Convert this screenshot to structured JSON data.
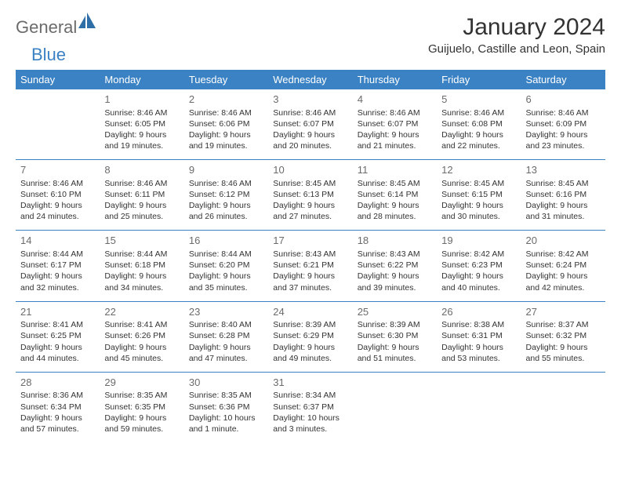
{
  "logo": {
    "general": "General",
    "blue": "Blue"
  },
  "title": "January 2024",
  "location": "Guijuelo, Castille and Leon, Spain",
  "colors": {
    "accent": "#3b82c4",
    "text": "#333333",
    "muted": "#6b6b6b",
    "bg": "#ffffff"
  },
  "days": [
    "Sunday",
    "Monday",
    "Tuesday",
    "Wednesday",
    "Thursday",
    "Friday",
    "Saturday"
  ],
  "weeks": [
    [
      null,
      {
        "n": "1",
        "sr": "Sunrise: 8:46 AM",
        "ss": "Sunset: 6:05 PM",
        "d1": "Daylight: 9 hours",
        "d2": "and 19 minutes."
      },
      {
        "n": "2",
        "sr": "Sunrise: 8:46 AM",
        "ss": "Sunset: 6:06 PM",
        "d1": "Daylight: 9 hours",
        "d2": "and 19 minutes."
      },
      {
        "n": "3",
        "sr": "Sunrise: 8:46 AM",
        "ss": "Sunset: 6:07 PM",
        "d1": "Daylight: 9 hours",
        "d2": "and 20 minutes."
      },
      {
        "n": "4",
        "sr": "Sunrise: 8:46 AM",
        "ss": "Sunset: 6:07 PM",
        "d1": "Daylight: 9 hours",
        "d2": "and 21 minutes."
      },
      {
        "n": "5",
        "sr": "Sunrise: 8:46 AM",
        "ss": "Sunset: 6:08 PM",
        "d1": "Daylight: 9 hours",
        "d2": "and 22 minutes."
      },
      {
        "n": "6",
        "sr": "Sunrise: 8:46 AM",
        "ss": "Sunset: 6:09 PM",
        "d1": "Daylight: 9 hours",
        "d2": "and 23 minutes."
      }
    ],
    [
      {
        "n": "7",
        "sr": "Sunrise: 8:46 AM",
        "ss": "Sunset: 6:10 PM",
        "d1": "Daylight: 9 hours",
        "d2": "and 24 minutes."
      },
      {
        "n": "8",
        "sr": "Sunrise: 8:46 AM",
        "ss": "Sunset: 6:11 PM",
        "d1": "Daylight: 9 hours",
        "d2": "and 25 minutes."
      },
      {
        "n": "9",
        "sr": "Sunrise: 8:46 AM",
        "ss": "Sunset: 6:12 PM",
        "d1": "Daylight: 9 hours",
        "d2": "and 26 minutes."
      },
      {
        "n": "10",
        "sr": "Sunrise: 8:45 AM",
        "ss": "Sunset: 6:13 PM",
        "d1": "Daylight: 9 hours",
        "d2": "and 27 minutes."
      },
      {
        "n": "11",
        "sr": "Sunrise: 8:45 AM",
        "ss": "Sunset: 6:14 PM",
        "d1": "Daylight: 9 hours",
        "d2": "and 28 minutes."
      },
      {
        "n": "12",
        "sr": "Sunrise: 8:45 AM",
        "ss": "Sunset: 6:15 PM",
        "d1": "Daylight: 9 hours",
        "d2": "and 30 minutes."
      },
      {
        "n": "13",
        "sr": "Sunrise: 8:45 AM",
        "ss": "Sunset: 6:16 PM",
        "d1": "Daylight: 9 hours",
        "d2": "and 31 minutes."
      }
    ],
    [
      {
        "n": "14",
        "sr": "Sunrise: 8:44 AM",
        "ss": "Sunset: 6:17 PM",
        "d1": "Daylight: 9 hours",
        "d2": "and 32 minutes."
      },
      {
        "n": "15",
        "sr": "Sunrise: 8:44 AM",
        "ss": "Sunset: 6:18 PM",
        "d1": "Daylight: 9 hours",
        "d2": "and 34 minutes."
      },
      {
        "n": "16",
        "sr": "Sunrise: 8:44 AM",
        "ss": "Sunset: 6:20 PM",
        "d1": "Daylight: 9 hours",
        "d2": "and 35 minutes."
      },
      {
        "n": "17",
        "sr": "Sunrise: 8:43 AM",
        "ss": "Sunset: 6:21 PM",
        "d1": "Daylight: 9 hours",
        "d2": "and 37 minutes."
      },
      {
        "n": "18",
        "sr": "Sunrise: 8:43 AM",
        "ss": "Sunset: 6:22 PM",
        "d1": "Daylight: 9 hours",
        "d2": "and 39 minutes."
      },
      {
        "n": "19",
        "sr": "Sunrise: 8:42 AM",
        "ss": "Sunset: 6:23 PM",
        "d1": "Daylight: 9 hours",
        "d2": "and 40 minutes."
      },
      {
        "n": "20",
        "sr": "Sunrise: 8:42 AM",
        "ss": "Sunset: 6:24 PM",
        "d1": "Daylight: 9 hours",
        "d2": "and 42 minutes."
      }
    ],
    [
      {
        "n": "21",
        "sr": "Sunrise: 8:41 AM",
        "ss": "Sunset: 6:25 PM",
        "d1": "Daylight: 9 hours",
        "d2": "and 44 minutes."
      },
      {
        "n": "22",
        "sr": "Sunrise: 8:41 AM",
        "ss": "Sunset: 6:26 PM",
        "d1": "Daylight: 9 hours",
        "d2": "and 45 minutes."
      },
      {
        "n": "23",
        "sr": "Sunrise: 8:40 AM",
        "ss": "Sunset: 6:28 PM",
        "d1": "Daylight: 9 hours",
        "d2": "and 47 minutes."
      },
      {
        "n": "24",
        "sr": "Sunrise: 8:39 AM",
        "ss": "Sunset: 6:29 PM",
        "d1": "Daylight: 9 hours",
        "d2": "and 49 minutes."
      },
      {
        "n": "25",
        "sr": "Sunrise: 8:39 AM",
        "ss": "Sunset: 6:30 PM",
        "d1": "Daylight: 9 hours",
        "d2": "and 51 minutes."
      },
      {
        "n": "26",
        "sr": "Sunrise: 8:38 AM",
        "ss": "Sunset: 6:31 PM",
        "d1": "Daylight: 9 hours",
        "d2": "and 53 minutes."
      },
      {
        "n": "27",
        "sr": "Sunrise: 8:37 AM",
        "ss": "Sunset: 6:32 PM",
        "d1": "Daylight: 9 hours",
        "d2": "and 55 minutes."
      }
    ],
    [
      {
        "n": "28",
        "sr": "Sunrise: 8:36 AM",
        "ss": "Sunset: 6:34 PM",
        "d1": "Daylight: 9 hours",
        "d2": "and 57 minutes."
      },
      {
        "n": "29",
        "sr": "Sunrise: 8:35 AM",
        "ss": "Sunset: 6:35 PM",
        "d1": "Daylight: 9 hours",
        "d2": "and 59 minutes."
      },
      {
        "n": "30",
        "sr": "Sunrise: 8:35 AM",
        "ss": "Sunset: 6:36 PM",
        "d1": "Daylight: 10 hours",
        "d2": "and 1 minute."
      },
      {
        "n": "31",
        "sr": "Sunrise: 8:34 AM",
        "ss": "Sunset: 6:37 PM",
        "d1": "Daylight: 10 hours",
        "d2": "and 3 minutes."
      },
      null,
      null,
      null
    ]
  ]
}
